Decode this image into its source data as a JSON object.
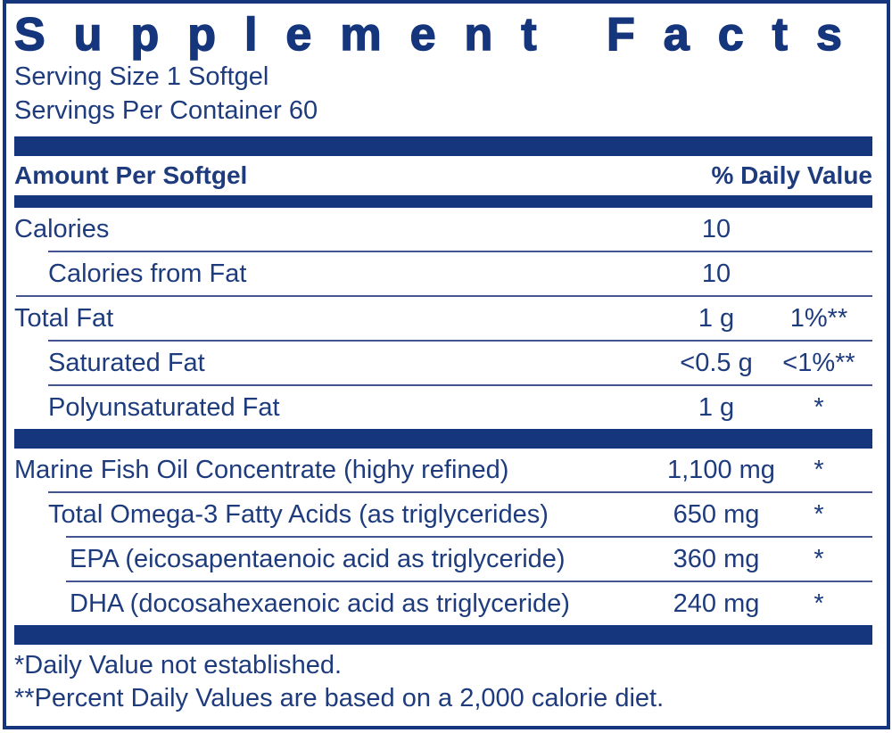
{
  "label": {
    "title": "Supplement Facts",
    "serving_size": "Serving Size 1 Softgel",
    "servings_per_container": "Servings Per Container 60",
    "header": {
      "amount_col": "Amount Per Softgel",
      "dv_col": "% Daily Value"
    },
    "nutrient_rows": [
      {
        "name": "Calories",
        "amount": "10",
        "dv": ""
      },
      {
        "name": "Calories from Fat",
        "amount": "10",
        "dv": ""
      },
      {
        "name": "Total Fat",
        "amount": "1 g",
        "dv": "1%**"
      },
      {
        "name": "Saturated Fat",
        "amount": "<0.5 g",
        "dv": "<1%**"
      },
      {
        "name": "Polyunsaturated Fat",
        "amount": "1 g",
        "dv": "*"
      }
    ],
    "oil_rows": [
      {
        "name": "Marine Fish Oil Concentrate (highy refined)",
        "amount": "1,100 mg",
        "dv": "*"
      },
      {
        "name": "Total Omega-3 Fatty Acids (as triglycerides)",
        "amount": "650 mg",
        "dv": "*"
      },
      {
        "name": "EPA (eicosapentaenoic acid as triglyceride)",
        "amount": "360 mg",
        "dv": "*"
      },
      {
        "name": "DHA (docosahexaenoic acid as triglyceride)",
        "amount": "240 mg",
        "dv": "*"
      }
    ],
    "footnotes": [
      "*Daily Value not established.",
      "**Percent Daily Values are based on a 2,000 calorie diet."
    ],
    "colors": {
      "navy": "#15357c",
      "text": "#1e3c7d",
      "hairline": "#44558f",
      "background": "#ffffff"
    }
  }
}
